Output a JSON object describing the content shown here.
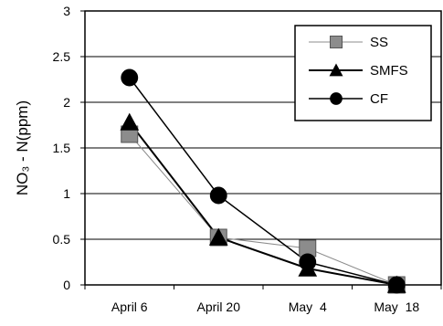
{
  "chart_data": {
    "type": "line",
    "title": "",
    "xlabel": "",
    "ylabel": "NO₃ - N(ppm)",
    "categories": [
      "April 6",
      "April 20",
      "May  4",
      "May  18"
    ],
    "ylim": [
      0,
      3
    ],
    "yticks": [
      "0",
      "0.5",
      "1",
      "1.5",
      "2",
      "2.5",
      "3"
    ],
    "grid": "horizontal",
    "legend_position": "top-right",
    "series": [
      {
        "name": "SS",
        "marker": "square",
        "color": "#8c8c8c",
        "values": [
          1.65,
          0.52,
          0.4,
          0.0
        ]
      },
      {
        "name": "SMFS",
        "marker": "triangle",
        "color": "#000000",
        "values": [
          1.78,
          0.52,
          0.18,
          0.0
        ]
      },
      {
        "name": "CF",
        "marker": "circle",
        "color": "#000000",
        "values": [
          2.27,
          0.98,
          0.25,
          0.0
        ]
      }
    ]
  }
}
